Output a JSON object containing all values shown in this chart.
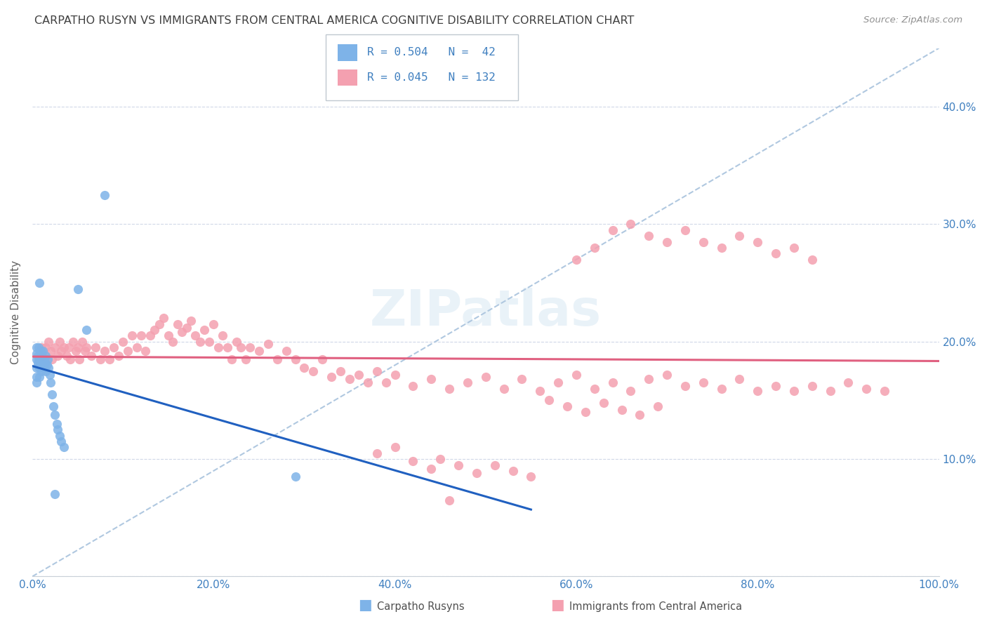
{
  "title": "CARPATHO RUSYN VS IMMIGRANTS FROM CENTRAL AMERICA COGNITIVE DISABILITY CORRELATION CHART",
  "source": "Source: ZipAtlas.com",
  "ylabel": "Cognitive Disability",
  "xlim": [
    0.0,
    1.0
  ],
  "ylim": [
    0.0,
    0.45
  ],
  "xtick_labels": [
    "0.0%",
    "20.0%",
    "40.0%",
    "60.0%",
    "80.0%",
    "100.0%"
  ],
  "right_ytick_labels": [
    "",
    "10.0%",
    "20.0%",
    "30.0%",
    "40.0%"
  ],
  "legend_r1": "R = 0.504",
  "legend_n1": "N =  42",
  "legend_r2": "R = 0.045",
  "legend_n2": "N = 132",
  "legend_label1": "Carpatho Rusyns",
  "legend_label2": "Immigrants from Central America",
  "blue_color": "#7EB3E8",
  "pink_color": "#F4A0B0",
  "blue_line_color": "#2060C0",
  "pink_line_color": "#E06080",
  "dashed_line_color": "#B0C8E0",
  "axis_label_color": "#4080C0",
  "watermark": "ZIPatlas",
  "blue_x": [
    0.005,
    0.005,
    0.005,
    0.005,
    0.005,
    0.005,
    0.006,
    0.006,
    0.007,
    0.007,
    0.008,
    0.008,
    0.009,
    0.009,
    0.01,
    0.01,
    0.01,
    0.012,
    0.012,
    0.013,
    0.014,
    0.015,
    0.015,
    0.016,
    0.017,
    0.018,
    0.019,
    0.02,
    0.022,
    0.023,
    0.025,
    0.027,
    0.028,
    0.03,
    0.032,
    0.035,
    0.05,
    0.06,
    0.08,
    0.29,
    0.008,
    0.025
  ],
  "blue_y": [
    0.195,
    0.19,
    0.185,
    0.178,
    0.17,
    0.165,
    0.188,
    0.182,
    0.195,
    0.185,
    0.178,
    0.17,
    0.192,
    0.18,
    0.188,
    0.182,
    0.175,
    0.192,
    0.185,
    0.178,
    0.182,
    0.188,
    0.175,
    0.18,
    0.185,
    0.178,
    0.172,
    0.165,
    0.155,
    0.145,
    0.138,
    0.13,
    0.125,
    0.12,
    0.115,
    0.11,
    0.245,
    0.21,
    0.325,
    0.085,
    0.25,
    0.07
  ],
  "pink_x": [
    0.01,
    0.012,
    0.015,
    0.018,
    0.02,
    0.022,
    0.025,
    0.028,
    0.03,
    0.032,
    0.035,
    0.038,
    0.04,
    0.042,
    0.045,
    0.048,
    0.05,
    0.052,
    0.055,
    0.058,
    0.06,
    0.065,
    0.07,
    0.075,
    0.08,
    0.085,
    0.09,
    0.095,
    0.1,
    0.105,
    0.11,
    0.115,
    0.12,
    0.125,
    0.13,
    0.135,
    0.14,
    0.145,
    0.15,
    0.155,
    0.16,
    0.165,
    0.17,
    0.175,
    0.18,
    0.185,
    0.19,
    0.195,
    0.2,
    0.205,
    0.21,
    0.215,
    0.22,
    0.225,
    0.23,
    0.235,
    0.24,
    0.25,
    0.26,
    0.27,
    0.28,
    0.29,
    0.3,
    0.31,
    0.32,
    0.33,
    0.34,
    0.35,
    0.36,
    0.37,
    0.38,
    0.39,
    0.4,
    0.42,
    0.44,
    0.46,
    0.48,
    0.5,
    0.52,
    0.54,
    0.56,
    0.58,
    0.6,
    0.62,
    0.64,
    0.66,
    0.68,
    0.7,
    0.72,
    0.74,
    0.76,
    0.78,
    0.8,
    0.82,
    0.84,
    0.86,
    0.88,
    0.9,
    0.92,
    0.94,
    0.6,
    0.62,
    0.64,
    0.66,
    0.68,
    0.7,
    0.72,
    0.74,
    0.76,
    0.78,
    0.8,
    0.82,
    0.84,
    0.86,
    0.45,
    0.47,
    0.49,
    0.51,
    0.53,
    0.55,
    0.57,
    0.59,
    0.61,
    0.63,
    0.65,
    0.67,
    0.69,
    0.38,
    0.4,
    0.42,
    0.44,
    0.46
  ],
  "pink_y": [
    0.195,
    0.188,
    0.195,
    0.2,
    0.192,
    0.185,
    0.195,
    0.188,
    0.2,
    0.192,
    0.195,
    0.188,
    0.195,
    0.185,
    0.2,
    0.192,
    0.195,
    0.185,
    0.2,
    0.192,
    0.195,
    0.188,
    0.195,
    0.185,
    0.192,
    0.185,
    0.195,
    0.188,
    0.2,
    0.192,
    0.205,
    0.195,
    0.205,
    0.192,
    0.205,
    0.21,
    0.215,
    0.22,
    0.205,
    0.2,
    0.215,
    0.208,
    0.212,
    0.218,
    0.205,
    0.2,
    0.21,
    0.2,
    0.215,
    0.195,
    0.205,
    0.195,
    0.185,
    0.2,
    0.195,
    0.185,
    0.195,
    0.192,
    0.198,
    0.185,
    0.192,
    0.185,
    0.178,
    0.175,
    0.185,
    0.17,
    0.175,
    0.168,
    0.172,
    0.165,
    0.175,
    0.165,
    0.172,
    0.162,
    0.168,
    0.16,
    0.165,
    0.17,
    0.16,
    0.168,
    0.158,
    0.165,
    0.172,
    0.16,
    0.165,
    0.158,
    0.168,
    0.172,
    0.162,
    0.165,
    0.16,
    0.168,
    0.158,
    0.162,
    0.158,
    0.162,
    0.158,
    0.165,
    0.16,
    0.158,
    0.27,
    0.28,
    0.295,
    0.3,
    0.29,
    0.285,
    0.295,
    0.285,
    0.28,
    0.29,
    0.285,
    0.275,
    0.28,
    0.27,
    0.1,
    0.095,
    0.088,
    0.095,
    0.09,
    0.085,
    0.15,
    0.145,
    0.14,
    0.148,
    0.142,
    0.138,
    0.145,
    0.105,
    0.11,
    0.098,
    0.092,
    0.065
  ]
}
